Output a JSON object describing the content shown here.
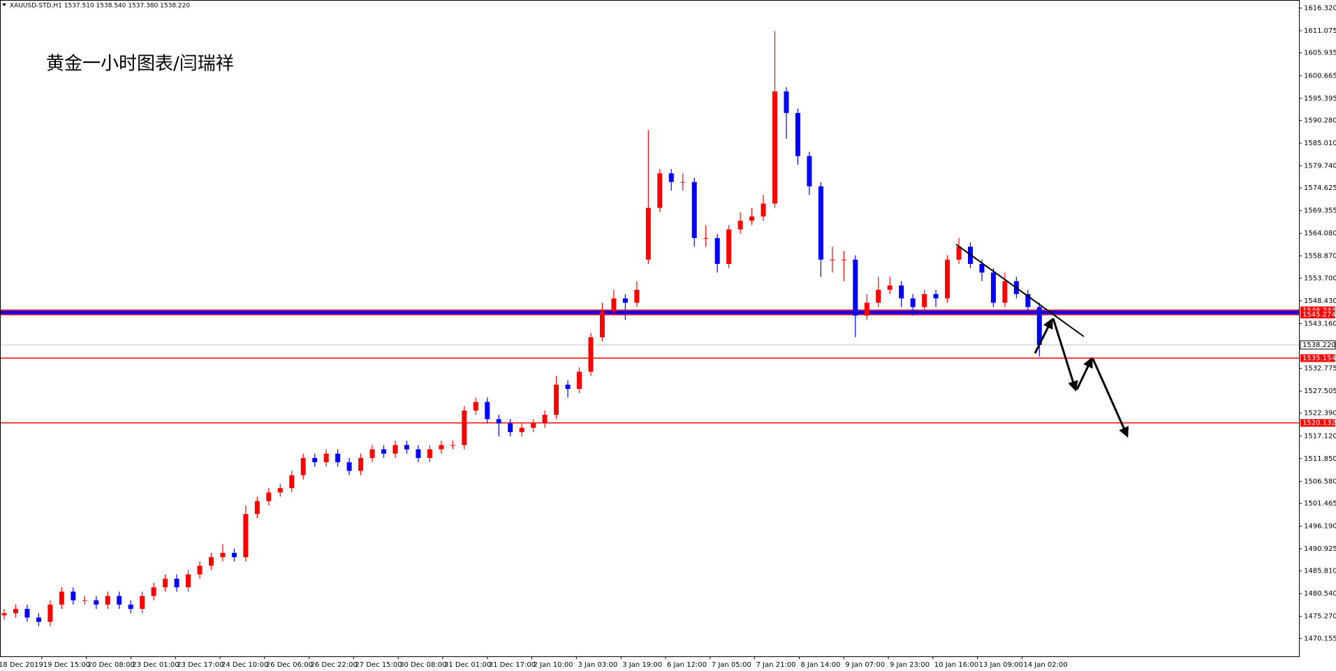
{
  "header": "XAUUSD-STD,H1  1537.510 1538.540 1537.380 1538.220",
  "chart_data": {
    "type": "candlestick",
    "title": "黄金一小时图表/闫瑞祥",
    "up_color": "#ff0000",
    "down_color": "#0000ff",
    "ylim": [
      1466,
      1618.2
    ],
    "yticks": [
      {
        "value": 1616.32,
        "label": "1616.320"
      },
      1611.075,
      1605.935,
      1600.665,
      1595.395,
      {
        "value": 1590.28,
        "label": "1590.280"
      },
      {
        "value": 1585.01,
        "label": "1585.010"
      },
      {
        "value": 1579.74,
        "label": "1579.740"
      },
      1574.625,
      1569.355,
      {
        "value": 1564.08,
        "label": "1564.080"
      },
      {
        "value": 1558.87,
        "label": "1558.870"
      },
      {
        "value": 1553.7,
        "label": "1553.700"
      },
      {
        "value": 1548.43,
        "label": "1548.430"
      },
      {
        "value": 1543.16,
        "label": "1543.160"
      },
      1532.775,
      1527.505,
      {
        "value": 1522.39,
        "label": "1522.390"
      },
      {
        "value": 1517.12,
        "label": "1517.120"
      },
      {
        "value": 1511.85,
        "label": "1511.850"
      },
      {
        "value": 1506.58,
        "label": "1506.580"
      },
      1501.465,
      {
        "value": 1496.19,
        "label": "1496.190"
      },
      1490.925,
      {
        "value": 1485.81,
        "label": "1485.810"
      },
      {
        "value": 1480.54,
        "label": "1480.540"
      },
      {
        "value": 1475.27,
        "label": "1475.270"
      },
      1470.155
    ],
    "categories": [
      "18 Dec 2019",
      "19 Dec 15:00",
      "20 Dec 08:00",
      "23 Dec 01:00",
      "23 Dec 17:00",
      "24 Dec 10:00",
      "26 Dec 06:00",
      "26 Dec 22:00",
      "27 Dec 15:00",
      "30 Dec 08:00",
      "31 Dec 01:00",
      "31 Dec 17:00",
      "2 Jan 10:00",
      "3 Jan 03:00",
      "3 Jan 19:00",
      "6 Jan 12:00",
      "7 Jan 05:00",
      "7 Jan 21:00",
      "8 Jan 14:00",
      "9 Jan 07:00",
      "9 Jan 23:00",
      "10 Jan 16:00",
      "13 Jan 09:00",
      "14 Jan 02:00"
    ],
    "levels": [
      1546.244,
      1545.274,
      1535.154,
      1520.132
    ],
    "current_price": {
      "value": 1538.22,
      "label": "1538.220"
    },
    "open": [
      1475.5,
      1476,
      1477,
      1475,
      1474,
      1478,
      1481,
      1479,
      1479,
      1478,
      1480,
      1478,
      1477,
      1480,
      1482,
      1484,
      1482,
      1485,
      1487,
      1489,
      1490,
      1489,
      1499,
      1502,
      1504,
      1505,
      1508,
      1512,
      1511,
      1513,
      1511,
      1509,
      1512,
      1514,
      1513,
      1515,
      1514,
      1512,
      1514,
      1515,
      1515,
      1523,
      1525,
      1521,
      1520,
      1518,
      1519,
      1520,
      1522,
      1529,
      1528,
      1532,
      1540,
      1546,
      1549,
      1548,
      1558,
      1570,
      1578,
      1576,
      1576,
      1563,
      1563,
      1557,
      1565,
      1567,
      1568,
      1571,
      1597,
      1592,
      1582,
      1575,
      1558,
      1558,
      1558,
      1545,
      1548,
      1551,
      1552,
      1549,
      1547,
      1550,
      1549,
      1558,
      1561,
      1557,
      1555,
      1548,
      1553,
      1550,
      1547
    ],
    "high": [
      1477,
      1478,
      1478,
      1476,
      1479,
      1482,
      1482,
      1480,
      1480,
      1481,
      1481,
      1479,
      1481,
      1483,
      1485,
      1485,
      1486,
      1488,
      1490,
      1492,
      1491,
      1501,
      1503,
      1505,
      1506,
      1509,
      1513,
      1513,
      1514,
      1514,
      1512,
      1513,
      1515,
      1515,
      1516,
      1516,
      1515,
      1515,
      1516,
      1516,
      1524,
      1526,
      1526,
      1522,
      1521,
      1520,
      1521,
      1523,
      1531,
      1530,
      1533,
      1541,
      1548,
      1551,
      1550,
      1553,
      1588,
      1579,
      1579,
      1578,
      1577,
      1566,
      1564,
      1566,
      1569,
      1570,
      1573,
      1611,
      1598,
      1593,
      1583,
      1576,
      1561,
      1560,
      1559,
      1550,
      1554,
      1554,
      1553,
      1550,
      1551,
      1551,
      1559,
      1563,
      1562,
      1558,
      1556,
      1555,
      1554,
      1551,
      1548
    ],
    "low": [
      1474.5,
      1475,
      1474,
      1473,
      1473,
      1477,
      1478,
      1478,
      1477,
      1477,
      1477,
      1476,
      1476,
      1479,
      1481,
      1481,
      1481,
      1484,
      1486,
      1488,
      1488,
      1488,
      1498,
      1501,
      1503,
      1504,
      1507,
      1510,
      1510,
      1510,
      1508,
      1508,
      1511,
      1512,
      1512,
      1513,
      1511,
      1511,
      1513,
      1514,
      1514,
      1522,
      1520,
      1517,
      1517,
      1517,
      1518,
      1519,
      1521,
      1526,
      1527,
      1531,
      1539,
      1545,
      1544,
      1547,
      1557,
      1569,
      1574,
      1574,
      1561,
      1561,
      1555,
      1556,
      1564,
      1566,
      1567,
      1570,
      1586,
      1580,
      1573,
      1554,
      1555,
      1553,
      1540,
      1544,
      1547,
      1550,
      1547,
      1545,
      1546,
      1547,
      1548,
      1557,
      1556,
      1553,
      1547,
      1547,
      1549,
      1546,
      1535.5
    ],
    "close": [
      1476,
      1477,
      1475,
      1474,
      1478,
      1481,
      1479,
      1479,
      1478,
      1480,
      1478,
      1477,
      1480,
      1482,
      1484,
      1482,
      1485,
      1487,
      1489,
      1490,
      1489,
      1499,
      1502,
      1504,
      1505,
      1508,
      1512,
      1511,
      1513,
      1511,
      1509,
      1512,
      1514,
      1513,
      1515,
      1514,
      1512,
      1514,
      1515,
      1515,
      1523,
      1525,
      1521,
      1520,
      1518,
      1519,
      1520,
      1522,
      1529,
      1528,
      1532,
      1540,
      1546,
      1549,
      1548,
      1551,
      1570,
      1578,
      1576,
      1576,
      1563,
      1563,
      1557,
      1565,
      1567,
      1568,
      1571,
      1597,
      1592,
      1582,
      1575,
      1558,
      1558,
      1558,
      1545,
      1548,
      1551,
      1552,
      1549,
      1547,
      1550,
      1549,
      1558,
      1561,
      1557,
      1555,
      1548,
      1553,
      1550,
      1547,
      1538.22
    ]
  }
}
